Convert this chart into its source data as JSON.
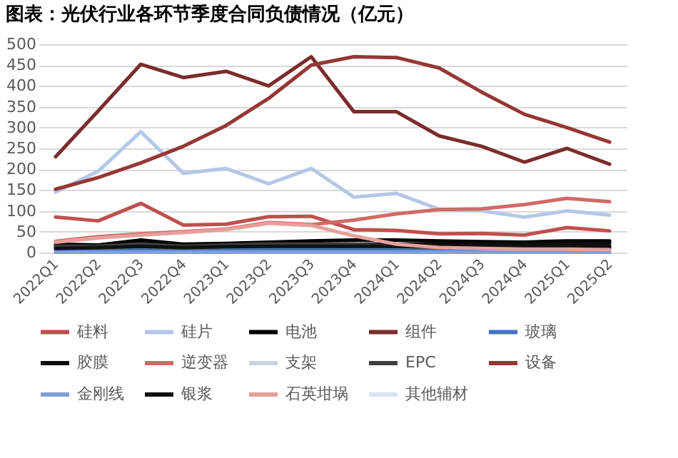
{
  "chart_data": {
    "type": "line",
    "title": "图表：光伏行业各环节季度合同负债情况（亿元）",
    "categories": [
      "2022Q1",
      "2022Q2",
      "2022Q3",
      "2022Q4",
      "2023Q1",
      "2023Q2",
      "2023Q3",
      "2023Q4",
      "2024Q1",
      "2024Q2",
      "2024Q3",
      "2024Q4",
      "2025Q1",
      "2025Q2"
    ],
    "ylim": [
      0,
      500
    ],
    "yticks": [
      0,
      50,
      100,
      150,
      200,
      250,
      300,
      350,
      400,
      450,
      500
    ],
    "grid": "y",
    "legend": "bottom",
    "marker": "none",
    "line_style": "solid",
    "series": [
      {
        "name": "硅料",
        "color": "#c0504d",
        "values": [
          85,
          76,
          118,
          66,
          68,
          86,
          87,
          55,
          53,
          45,
          46,
          42,
          60,
          52
        ]
      },
      {
        "name": "硅片",
        "color": "#b4c7e7",
        "values": [
          145,
          195,
          290,
          190,
          202,
          165,
          202,
          133,
          142,
          104,
          100,
          85,
          100,
          90
        ]
      },
      {
        "name": "电池",
        "color": "#000000",
        "values": [
          20,
          18,
          30,
          20,
          22,
          25,
          28,
          30,
          30,
          28,
          26,
          25,
          28,
          28
        ]
      },
      {
        "name": "组件",
        "color": "#7b2c2c",
        "values": [
          230,
          340,
          452,
          420,
          435,
          400,
          470,
          338,
          338,
          280,
          255,
          217,
          250,
          212
        ]
      },
      {
        "name": "玻璃",
        "color": "#4472c4",
        "values": [
          7,
          7,
          8,
          7,
          8,
          8,
          8,
          8,
          8,
          7,
          7,
          7,
          8,
          8
        ]
      },
      {
        "name": "胶膜",
        "color": "#0d0d0d",
        "values": [
          15,
          15,
          22,
          15,
          18,
          18,
          20,
          20,
          20,
          20,
          20,
          20,
          22,
          22
        ]
      },
      {
        "name": "逆变器",
        "color": "#d06a66",
        "values": [
          27,
          38,
          45,
          50,
          56,
          72,
          67,
          78,
          93,
          103,
          105,
          115,
          130,
          122
        ]
      },
      {
        "name": "支架",
        "color": "#c9d4e6",
        "values": [
          null,
          null,
          null,
          null,
          null,
          null,
          null,
          null,
          null,
          null,
          null,
          null,
          null,
          null
        ]
      },
      {
        "name": "EPC",
        "color": "#404040",
        "values": [
          15,
          15,
          20,
          15,
          18,
          20,
          20,
          20,
          15,
          12,
          10,
          10,
          12,
          12
        ]
      },
      {
        "name": "设备",
        "color": "#953735",
        "values": [
          152,
          180,
          215,
          255,
          305,
          370,
          450,
          470,
          468,
          443,
          385,
          332,
          300,
          265
        ]
      },
      {
        "name": "金刚线",
        "color": "#7f9fd4",
        "values": [
          1,
          1,
          1,
          1,
          1,
          1,
          1,
          1,
          1,
          1,
          1,
          1,
          1,
          1
        ]
      },
      {
        "name": "银浆",
        "color": "#111111",
        "values": [
          10,
          12,
          15,
          12,
          14,
          15,
          15,
          15,
          15,
          15,
          15,
          15,
          15,
          15
        ]
      },
      {
        "name": "石英坩埚",
        "color": "#e6a09c",
        "values": [
          25,
          35,
          42,
          48,
          55,
          70,
          65,
          40,
          20,
          12,
          10,
          8,
          8,
          7
        ]
      },
      {
        "name": "其他辅材",
        "color": "#dae3f3",
        "values": [
          null,
          null,
          null,
          null,
          null,
          null,
          null,
          null,
          null,
          null,
          null,
          null,
          null,
          null
        ]
      }
    ]
  }
}
